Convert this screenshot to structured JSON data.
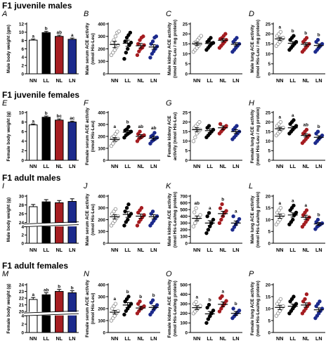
{
  "sections": [
    {
      "title": "F1 juvenile males"
    },
    {
      "title": "F1 juvenile females"
    },
    {
      "title": "F1 adult males"
    },
    {
      "title": "F1 adult females"
    }
  ],
  "colors": {
    "NN": "#ffffff",
    "LL": "#000000",
    "NL": "#a51d21",
    "LN": "#1c2a8c"
  },
  "chart_data": [
    {
      "letter": "A",
      "type": "bar",
      "ylabel": "Male body weight (gm)",
      "ylim": [
        0,
        12
      ],
      "yticks": [
        0,
        2,
        4,
        6,
        8,
        10,
        12
      ],
      "categories": [
        "NN",
        "LL",
        "NL",
        "LN"
      ],
      "values": [
        8.1,
        9.9,
        9.0,
        8.3
      ],
      "errors": [
        0.25,
        0.3,
        0.3,
        0.3
      ],
      "sig": [
        "a",
        "b",
        "ab",
        "a"
      ]
    },
    {
      "letter": "B",
      "type": "scatter",
      "ylabel": "Male serum ACE activity",
      "ylabel2": "(nmol His-Leu)",
      "ylim": [
        0,
        400
      ],
      "yticks": [
        0,
        100,
        200,
        300,
        400
      ],
      "categories": [
        "NN",
        "LL",
        "NL",
        "LN"
      ],
      "means": [
        235,
        245,
        225,
        215
      ],
      "sem": [
        25,
        25,
        18,
        18
      ],
      "sig": [
        "",
        "",
        "",
        ""
      ],
      "points": [
        [
          150,
          170,
          190,
          210,
          230,
          250,
          270,
          300,
          330,
          340
        ],
        [
          120,
          170,
          200,
          230,
          250,
          260,
          290,
          310,
          330
        ],
        [
          150,
          180,
          200,
          210,
          230,
          240,
          270,
          290,
          300
        ],
        [
          130,
          160,
          180,
          200,
          220,
          240,
          260,
          290,
          300
        ]
      ]
    },
    {
      "letter": "C",
      "type": "scatter",
      "ylabel": "Male kidney ACE activity",
      "ylabel2": "(nmol His-Leu / mg protein)",
      "ylim": [
        0,
        25
      ],
      "yticks": [
        0,
        5,
        10,
        15,
        20,
        25
      ],
      "categories": [
        "NN",
        "LL",
        "NL",
        "LN"
      ],
      "means": [
        15,
        15.2,
        16.8,
        14.8
      ],
      "sem": [
        0.8,
        0.8,
        0.8,
        0.8
      ],
      "sig": [
        "",
        "",
        "",
        ""
      ],
      "points": [
        [
          11,
          12,
          13,
          14,
          15,
          15.5,
          16,
          17,
          18,
          19
        ],
        [
          12,
          13,
          14,
          15,
          15.5,
          16,
          17,
          18
        ],
        [
          13,
          14,
          15,
          16,
          17,
          17.5,
          18,
          19,
          20
        ],
        [
          11,
          12,
          13,
          14,
          15,
          16,
          17,
          18
        ]
      ]
    },
    {
      "letter": "D",
      "type": "scatter",
      "ylabel": "Male lung ACE activity",
      "ylabel2": "(nmol His-Leu / mg protein)",
      "ylim": [
        0,
        25
      ],
      "yticks": [
        0,
        5,
        10,
        15,
        20,
        25
      ],
      "categories": [
        "NN",
        "LL",
        "NL",
        "LN"
      ],
      "means": [
        17.5,
        15.3,
        14.8,
        14.2
      ],
      "sem": [
        0.8,
        0.8,
        0.8,
        0.8
      ],
      "sig": [
        "a",
        "b",
        "b",
        "b"
      ],
      "points": [
        [
          14,
          15,
          16,
          17,
          18,
          19,
          20,
          21
        ],
        [
          12,
          13,
          14,
          15,
          16,
          17,
          18,
          19
        ],
        [
          11,
          12,
          13,
          14,
          15,
          16,
          17,
          18
        ],
        [
          11,
          12,
          13,
          14,
          15,
          16,
          17
        ]
      ]
    },
    {
      "letter": "E",
      "type": "bar",
      "ylabel": "Female body weight (g)",
      "ylim": [
        0,
        10
      ],
      "yticks": [
        0,
        2,
        4,
        6,
        8,
        10
      ],
      "categories": [
        "NN",
        "LL",
        "NL",
        "LN"
      ],
      "values": [
        7.4,
        9.0,
        8.4,
        8.0
      ],
      "errors": [
        0.2,
        0.25,
        0.25,
        0.2
      ],
      "sig": [
        "a",
        "b",
        "bc",
        "ac"
      ]
    },
    {
      "letter": "F",
      "type": "scatter",
      "ylabel": "Female serum ACE activity",
      "ylabel2": "(nmol His-Leu)",
      "ylim": [
        0,
        400
      ],
      "yticks": [
        0,
        100,
        200,
        300,
        400
      ],
      "categories": [
        "NN",
        "LL",
        "NL",
        "LN"
      ],
      "means": [
        175,
        235,
        200,
        185
      ],
      "sem": [
        15,
        15,
        15,
        15
      ],
      "sig": [
        "a",
        "b",
        "ab",
        "ab"
      ],
      "points": [
        [
          120,
          140,
          160,
          170,
          180,
          190,
          200,
          220,
          240
        ],
        [
          190,
          210,
          220,
          230,
          240,
          250,
          260,
          280
        ],
        [
          160,
          180,
          190,
          200,
          210,
          220,
          240
        ],
        [
          140,
          160,
          170,
          180,
          190,
          200,
          210,
          230
        ]
      ]
    },
    {
      "letter": "G",
      "type": "scatter",
      "ylabel": "Female kidney ACE",
      "ylabel2": "activity (nmol His-Leu)",
      "ylim": [
        0,
        25
      ],
      "yticks": [
        0,
        5,
        10,
        15,
        20,
        25
      ],
      "categories": [
        "NN",
        "LL",
        "NL",
        "LN"
      ],
      "means": [
        16,
        15.5,
        17,
        15
      ],
      "sem": [
        1,
        1,
        1,
        1
      ],
      "sig": [
        "",
        "",
        "",
        ""
      ],
      "points": [
        [
          10,
          12,
          14,
          15,
          16,
          17,
          18,
          19,
          20
        ],
        [
          12,
          13,
          14,
          15,
          16,
          17,
          18
        ],
        [
          14,
          15,
          16,
          17,
          18,
          19
        ],
        [
          11,
          12,
          13,
          14,
          15,
          16,
          17,
          18
        ]
      ]
    },
    {
      "letter": "H",
      "type": "scatter",
      "ylabel": "Female lung ACE activity",
      "ylabel2": "(nmol His-Leu / mg protein)",
      "ylim": [
        0,
        25
      ],
      "yticks": [
        0,
        5,
        10,
        15,
        20,
        25
      ],
      "categories": [
        "NN",
        "LL",
        "NL",
        "LN"
      ],
      "means": [
        16.5,
        17,
        13,
        12
      ],
      "sem": [
        0.8,
        0.8,
        0.8,
        0.8
      ],
      "sig": [
        "a",
        "a",
        "ab",
        "b"
      ],
      "points": [
        [
          13,
          14,
          15,
          16,
          17,
          18,
          19,
          20
        ],
        [
          14,
          15,
          16,
          17,
          18,
          19,
          20,
          21
        ],
        [
          9,
          10,
          11,
          12,
          13,
          14,
          15,
          16
        ],
        [
          9,
          10,
          11,
          12,
          13,
          14,
          15
        ]
      ]
    },
    {
      "letter": "I",
      "type": "bar",
      "ylabel": "Male body weight (g)",
      "ylim": [
        0,
        30
      ],
      "yticks": [
        0,
        2,
        4,
        24,
        26,
        28,
        30
      ],
      "broken": true,
      "categories": [
        "NN",
        "LL",
        "NL",
        "LN"
      ],
      "values": [
        27.6,
        28.7,
        28.5,
        28.8
      ],
      "errors": [
        0.5,
        0.5,
        0.5,
        0.6
      ],
      "sig": [
        "",
        "",
        "",
        ""
      ]
    },
    {
      "letter": "J",
      "type": "scatter",
      "ylabel": "Male serum ACE activity",
      "ylabel2": "(nmol His-Leu)",
      "ylim": [
        0,
        400
      ],
      "yticks": [
        0,
        100,
        200,
        300,
        400
      ],
      "categories": [
        "NN",
        "LL",
        "NL",
        "LN"
      ],
      "means": [
        225,
        245,
        230,
        225
      ],
      "sem": [
        18,
        25,
        18,
        18
      ],
      "sig": [
        "",
        "",
        "",
        ""
      ],
      "points": [
        [
          150,
          170,
          190,
          210,
          230,
          250,
          270,
          290
        ],
        [
          150,
          180,
          200,
          230,
          250,
          270,
          300,
          330
        ],
        [
          150,
          180,
          200,
          220,
          240,
          260,
          280,
          300
        ],
        [
          150,
          170,
          190,
          210,
          230,
          250,
          270
        ]
      ]
    },
    {
      "letter": "K",
      "type": "scatter",
      "ylabel": "Male kidney ACE activity",
      "ylabel2": "(nmol His-Leu/mg protein)",
      "ylim": [
        0,
        700
      ],
      "yticks": [
        0,
        100,
        200,
        300,
        400,
        500,
        600,
        700
      ],
      "categories": [
        "NN",
        "LL",
        "NL",
        "LN"
      ],
      "means": [
        370,
        300,
        440,
        300
      ],
      "sem": [
        35,
        35,
        35,
        30
      ],
      "sig": [
        "ab",
        "a",
        "b",
        "a"
      ],
      "points": [
        [
          250,
          300,
          340,
          380,
          420,
          460,
          520
        ],
        [
          150,
          200,
          250,
          300,
          350,
          400,
          450
        ],
        [
          300,
          350,
          400,
          450,
          480,
          520,
          580
        ],
        [
          200,
          240,
          280,
          320,
          360,
          400
        ]
      ]
    },
    {
      "letter": "L",
      "type": "scatter",
      "ylabel": "Male lung ACE activity",
      "ylabel2": "(nmol His-Leu/mg protein)",
      "ylim": [
        0,
        20
      ],
      "yticks": [
        0,
        5,
        10,
        15,
        20
      ],
      "categories": [
        "NN",
        "LL",
        "NL",
        "LN"
      ],
      "means": [
        11.5,
        12,
        11,
        8.2
      ],
      "sem": [
        0.9,
        0.9,
        0.9,
        0.6
      ],
      "sig": [
        "a",
        "a",
        "a",
        "b"
      ],
      "points": [
        [
          8,
          9,
          10,
          11,
          12,
          13,
          14,
          15
        ],
        [
          8,
          9,
          10,
          12,
          13,
          14,
          15,
          16
        ],
        [
          7,
          8,
          9,
          10,
          11,
          12,
          13,
          14
        ],
        [
          6,
          7,
          7.5,
          8,
          8.5,
          9,
          10
        ]
      ]
    },
    {
      "letter": "M",
      "type": "bar",
      "ylabel": "Female body weight (g)",
      "ylim": [
        0,
        24
      ],
      "yticks": [
        0,
        2,
        4,
        20,
        21,
        22,
        23,
        24
      ],
      "broken": true,
      "categories": [
        "NN",
        "LL",
        "NL",
        "LN"
      ],
      "values": [
        21.8,
        22.5,
        23.0,
        22.8
      ],
      "errors": [
        0.3,
        0.3,
        0.3,
        0.3
      ],
      "sig": [
        "a",
        "ab",
        "b",
        "b"
      ]
    },
    {
      "letter": "N",
      "type": "scatter",
      "ylabel": "Female serum ACE activity",
      "ylabel2": "(nmol His-Leu)",
      "ylim": [
        0,
        400
      ],
      "yticks": [
        0,
        100,
        200,
        300,
        400
      ],
      "categories": [
        "NN",
        "LL",
        "NL",
        "LN"
      ],
      "means": [
        170,
        230,
        205,
        210
      ],
      "sem": [
        15,
        20,
        15,
        15
      ],
      "sig": [
        "a",
        "b",
        "b",
        "b"
      ],
      "points": [
        [
          100,
          120,
          140,
          160,
          180,
          200,
          220,
          240
        ],
        [
          150,
          180,
          200,
          220,
          240,
          260,
          280,
          300
        ],
        [
          160,
          180,
          200,
          210,
          220,
          240,
          260
        ],
        [
          150,
          170,
          190,
          210,
          230,
          250,
          270
        ]
      ]
    },
    {
      "letter": "O",
      "type": "scatter",
      "ylabel": "Female kidney ACE activity",
      "ylabel2": "(nmol His-Leu/mg protein)",
      "ylim": [
        0,
        500
      ],
      "yticks": [
        0,
        100,
        200,
        300,
        400,
        500
      ],
      "categories": [
        "NN",
        "LL",
        "NL",
        "LN"
      ],
      "means": [
        260,
        195,
        295,
        200
      ],
      "sem": [
        20,
        25,
        25,
        20
      ],
      "sig": [
        "a",
        "b",
        "a",
        "b"
      ],
      "points": [
        [
          200,
          220,
          240,
          260,
          280,
          300,
          320
        ],
        [
          100,
          140,
          170,
          200,
          230,
          260,
          290
        ],
        [
          220,
          250,
          280,
          300,
          330,
          360,
          380
        ],
        [
          150,
          170,
          190,
          210,
          230,
          250
        ]
      ]
    },
    {
      "letter": "P",
      "type": "scatter",
      "ylabel": "Female lung ACE activity",
      "ylabel2": "(nmol His-Leu/mg protein)",
      "ylim": [
        0,
        20
      ],
      "yticks": [
        0,
        5,
        10,
        15,
        20
      ],
      "categories": [
        "NN",
        "LL",
        "NL",
        "LN"
      ],
      "means": [
        10.5,
        11,
        11.5,
        9.5
      ],
      "sem": [
        0.9,
        0.9,
        0.9,
        0.8
      ],
      "sig": [
        "",
        "",
        "",
        ""
      ],
      "points": [
        [
          7,
          8,
          9,
          10,
          11,
          12,
          13,
          14
        ],
        [
          8,
          9,
          10,
          11,
          12,
          13,
          14,
          15
        ],
        [
          8,
          9,
          10,
          11,
          12,
          13,
          14,
          16
        ],
        [
          6,
          7,
          8,
          9,
          10,
          11,
          12,
          13
        ]
      ]
    }
  ]
}
